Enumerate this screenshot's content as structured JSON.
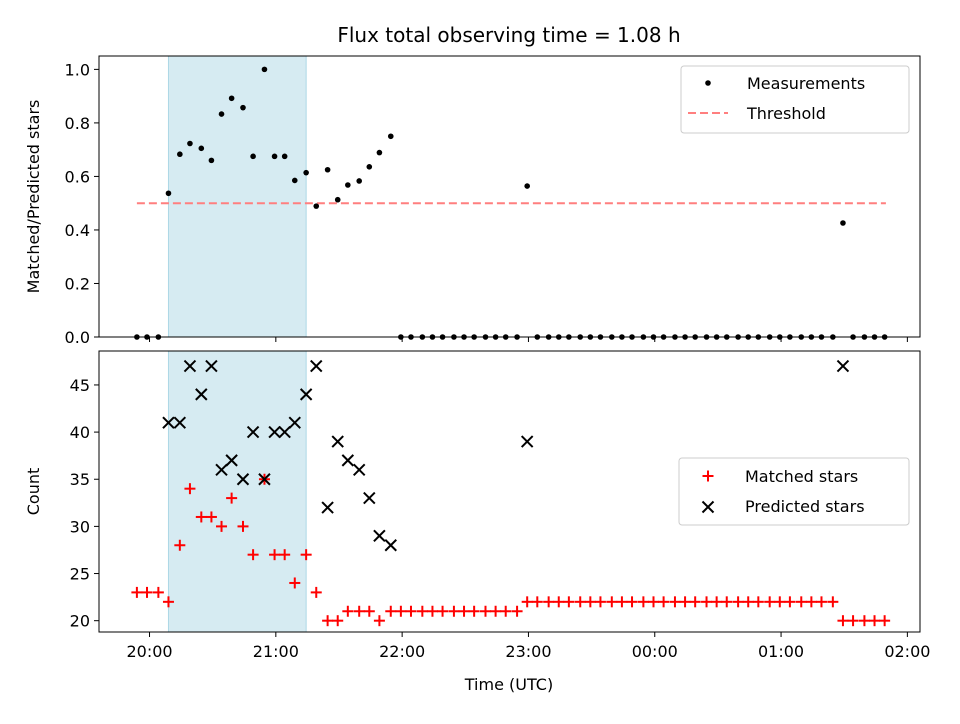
{
  "chart_data": {
    "type": "scatter",
    "title": "Flux total observing time = 1.08 h",
    "xlabel": "Time (UTC)",
    "x_unit": "hours since 20:00 UTC",
    "xlim": [
      -0.4,
      6.1
    ],
    "x_ticks": [
      {
        "v": 0,
        "label": "20:00"
      },
      {
        "v": 1,
        "label": "21:00"
      },
      {
        "v": 2,
        "label": "22:00"
      },
      {
        "v": 3,
        "label": "23:00"
      },
      {
        "v": 4,
        "label": "00:00"
      },
      {
        "v": 5,
        "label": "01:00"
      },
      {
        "v": 6,
        "label": "02:00"
      }
    ],
    "highlight_span": {
      "x_start": 0.15,
      "x_end": 1.24,
      "color": "#add8e6"
    },
    "top": {
      "ylabel": "Matched/Predicted stars",
      "ylim": [
        0,
        1.05
      ],
      "y_ticks": [
        0.0,
        0.2,
        0.4,
        0.6,
        0.8,
        1.0
      ],
      "y_tick_labels": [
        "0.0",
        "0.2",
        "0.4",
        "0.6",
        "0.8",
        "1.0"
      ],
      "legend": {
        "position": "top-right",
        "items": [
          "Measurements",
          "Threshold"
        ]
      },
      "threshold": {
        "name": "Threshold",
        "value": 0.5,
        "x_range": [
          -0.1,
          5.83
        ],
        "color": "#ff7f7f"
      },
      "measurements": {
        "name": "Measurements",
        "color": "#000000",
        "points": [
          [
            -0.1,
            0
          ],
          [
            -0.02,
            0
          ],
          [
            0.07,
            0
          ],
          [
            0.15,
            0.537
          ],
          [
            0.24,
            0.683
          ],
          [
            0.32,
            0.723
          ],
          [
            0.41,
            0.705
          ],
          [
            0.49,
            0.66
          ],
          [
            0.57,
            0.833
          ],
          [
            0.65,
            0.892
          ],
          [
            0.74,
            0.857
          ],
          [
            0.82,
            0.675
          ],
          [
            0.91,
            1.0
          ],
          [
            0.99,
            0.675
          ],
          [
            1.07,
            0.675
          ],
          [
            1.15,
            0.585
          ],
          [
            1.24,
            0.614
          ],
          [
            1.32,
            0.489
          ],
          [
            1.41,
            0.625
          ],
          [
            1.49,
            0.513
          ],
          [
            1.57,
            0.568
          ],
          [
            1.66,
            0.583
          ],
          [
            1.74,
            0.636
          ],
          [
            1.82,
            0.689
          ],
          [
            1.91,
            0.75
          ],
          [
            1.99,
            0
          ],
          [
            2.07,
            0
          ],
          [
            2.16,
            0
          ],
          [
            2.24,
            0
          ],
          [
            2.32,
            0
          ],
          [
            2.41,
            0
          ],
          [
            2.49,
            0
          ],
          [
            2.57,
            0
          ],
          [
            2.66,
            0
          ],
          [
            2.74,
            0
          ],
          [
            2.82,
            0
          ],
          [
            2.91,
            0
          ],
          [
            2.99,
            0.564
          ],
          [
            3.07,
            0
          ],
          [
            3.16,
            0
          ],
          [
            3.24,
            0
          ],
          [
            3.32,
            0
          ],
          [
            3.41,
            0
          ],
          [
            3.49,
            0
          ],
          [
            3.57,
            0
          ],
          [
            3.66,
            0
          ],
          [
            3.74,
            0
          ],
          [
            3.82,
            0
          ],
          [
            3.91,
            0
          ],
          [
            3.99,
            0
          ],
          [
            4.07,
            0
          ],
          [
            4.16,
            0
          ],
          [
            4.24,
            0
          ],
          [
            4.32,
            0
          ],
          [
            4.41,
            0
          ],
          [
            4.49,
            0
          ],
          [
            4.57,
            0
          ],
          [
            4.66,
            0
          ],
          [
            4.74,
            0
          ],
          [
            4.82,
            0
          ],
          [
            4.91,
            0
          ],
          [
            4.99,
            0
          ],
          [
            5.07,
            0
          ],
          [
            5.16,
            0
          ],
          [
            5.24,
            0
          ],
          [
            5.32,
            0
          ],
          [
            5.41,
            0
          ],
          [
            5.49,
            0.426
          ],
          [
            5.57,
            0
          ],
          [
            5.66,
            0
          ],
          [
            5.74,
            0
          ],
          [
            5.82,
            0
          ]
        ]
      }
    },
    "bottom": {
      "ylabel": "Count",
      "ylim": [
        18.8,
        48.6
      ],
      "y_ticks": [
        20,
        25,
        30,
        35,
        40,
        45
      ],
      "y_tick_labels": [
        "20",
        "25",
        "30",
        "35",
        "40",
        "45"
      ],
      "legend": {
        "position": "center-right",
        "items": [
          "Matched stars",
          "Predicted stars"
        ]
      },
      "matched": {
        "name": "Matched stars",
        "color": "#ff0000",
        "points": [
          [
            -0.1,
            23
          ],
          [
            -0.02,
            23
          ],
          [
            0.07,
            23
          ],
          [
            0.15,
            22
          ],
          [
            0.24,
            28
          ],
          [
            0.32,
            34
          ],
          [
            0.41,
            31
          ],
          [
            0.49,
            31
          ],
          [
            0.57,
            30
          ],
          [
            0.65,
            33
          ],
          [
            0.74,
            30
          ],
          [
            0.82,
            27
          ],
          [
            0.91,
            35
          ],
          [
            0.99,
            27
          ],
          [
            1.07,
            27
          ],
          [
            1.15,
            24
          ],
          [
            1.24,
            27
          ],
          [
            1.32,
            23
          ],
          [
            1.41,
            20
          ],
          [
            1.49,
            20
          ],
          [
            1.57,
            21
          ],
          [
            1.66,
            21
          ],
          [
            1.74,
            21
          ],
          [
            1.82,
            20
          ],
          [
            1.91,
            21
          ],
          [
            1.99,
            21
          ],
          [
            2.07,
            21
          ],
          [
            2.16,
            21
          ],
          [
            2.24,
            21
          ],
          [
            2.32,
            21
          ],
          [
            2.41,
            21
          ],
          [
            2.49,
            21
          ],
          [
            2.57,
            21
          ],
          [
            2.66,
            21
          ],
          [
            2.74,
            21
          ],
          [
            2.82,
            21
          ],
          [
            2.91,
            21
          ],
          [
            2.99,
            22
          ],
          [
            3.07,
            22
          ],
          [
            3.16,
            22
          ],
          [
            3.24,
            22
          ],
          [
            3.32,
            22
          ],
          [
            3.41,
            22
          ],
          [
            3.49,
            22
          ],
          [
            3.57,
            22
          ],
          [
            3.66,
            22
          ],
          [
            3.74,
            22
          ],
          [
            3.82,
            22
          ],
          [
            3.91,
            22
          ],
          [
            3.99,
            22
          ],
          [
            4.07,
            22
          ],
          [
            4.16,
            22
          ],
          [
            4.24,
            22
          ],
          [
            4.32,
            22
          ],
          [
            4.41,
            22
          ],
          [
            4.49,
            22
          ],
          [
            4.57,
            22
          ],
          [
            4.66,
            22
          ],
          [
            4.74,
            22
          ],
          [
            4.82,
            22
          ],
          [
            4.91,
            22
          ],
          [
            4.99,
            22
          ],
          [
            5.07,
            22
          ],
          [
            5.16,
            22
          ],
          [
            5.24,
            22
          ],
          [
            5.32,
            22
          ],
          [
            5.41,
            22
          ],
          [
            5.49,
            20
          ],
          [
            5.57,
            20
          ],
          [
            5.66,
            20
          ],
          [
            5.74,
            20
          ],
          [
            5.82,
            20
          ]
        ]
      },
      "predicted": {
        "name": "Predicted stars",
        "color": "#000000",
        "points": [
          [
            0.15,
            41
          ],
          [
            0.24,
            41
          ],
          [
            0.32,
            47
          ],
          [
            0.41,
            44
          ],
          [
            0.49,
            47
          ],
          [
            0.57,
            36
          ],
          [
            0.65,
            37
          ],
          [
            0.74,
            35
          ],
          [
            0.82,
            40
          ],
          [
            0.91,
            35
          ],
          [
            0.99,
            40
          ],
          [
            1.07,
            40
          ],
          [
            1.15,
            41
          ],
          [
            1.24,
            44
          ],
          [
            1.32,
            47
          ],
          [
            1.41,
            32
          ],
          [
            1.49,
            39
          ],
          [
            1.57,
            37
          ],
          [
            1.66,
            36
          ],
          [
            1.74,
            33
          ],
          [
            1.82,
            29
          ],
          [
            1.91,
            28
          ],
          [
            2.99,
            39
          ],
          [
            5.49,
            47
          ]
        ]
      }
    }
  }
}
